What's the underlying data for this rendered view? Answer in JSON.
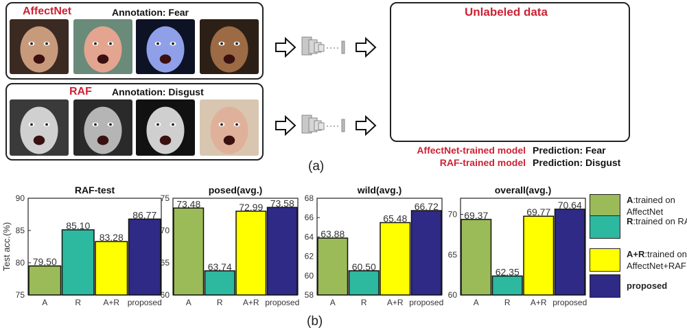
{
  "labeled": {
    "affectnet": {
      "name": "AffectNet",
      "annotation": "Annotation: Fear"
    },
    "raf": {
      "name": "RAF",
      "annotation": "Annotation: Disgust"
    }
  },
  "unlabeled": {
    "title": "Unlabeled data",
    "predictions": [
      {
        "model": "AffectNet-trained model",
        "prediction": "Prediction: Fear"
      },
      {
        "model": "RAF-trained model",
        "prediction": "Prediction: Disgust"
      }
    ]
  },
  "captions": {
    "a": "(a)",
    "b": "(b)"
  },
  "legend": [
    {
      "key": "A",
      "desc": ":trained on AffectNet",
      "color": "#9bbb59"
    },
    {
      "key": "R",
      "desc": ":trained on RAF",
      "color": "#2db8a0"
    },
    {
      "key": "A+R",
      "desc": ":trained on AffectNet+RAF",
      "color": "#ffff00"
    },
    {
      "key": "proposed",
      "desc": "",
      "color": "#2e2a85"
    }
  ],
  "chart_data": [
    {
      "type": "bar",
      "title": "RAF-test",
      "ylabel": "Test acc.(%)",
      "categories": [
        "A",
        "R",
        "A+R",
        "proposed"
      ],
      "values": [
        79.5,
        85.1,
        83.28,
        86.77
      ],
      "labels": [
        "79.50",
        "85.10",
        "83.28",
        "86.77"
      ],
      "ylim": [
        75,
        90
      ],
      "yticks": [
        75,
        80,
        85,
        90
      ]
    },
    {
      "type": "bar",
      "title": "posed(avg.)",
      "ylabel": "",
      "categories": [
        "A",
        "R",
        "A+R",
        "proposed"
      ],
      "values": [
        73.48,
        63.74,
        72.99,
        73.58
      ],
      "labels": [
        "73.48",
        "63.74",
        "72.99",
        "73.58"
      ],
      "ylim": [
        60,
        75
      ],
      "yticks": [
        60,
        65,
        70,
        75
      ]
    },
    {
      "type": "bar",
      "title": "wild(avg.)",
      "ylabel": "",
      "categories": [
        "A",
        "R",
        "A+R",
        "proposed"
      ],
      "values": [
        63.88,
        60.5,
        65.48,
        66.72
      ],
      "labels": [
        "63.88",
        "60.50",
        "65.48",
        "66.72"
      ],
      "ylim": [
        58,
        68
      ],
      "yticks": [
        58,
        60,
        62,
        64,
        66,
        68
      ]
    },
    {
      "type": "bar",
      "title": "overall(avg.)",
      "ylabel": "",
      "categories": [
        "A",
        "R",
        "A+R",
        "proposed"
      ],
      "values": [
        69.37,
        62.35,
        69.77,
        70.64
      ],
      "labels": [
        "69.37",
        "62.35",
        "69.77",
        "70.64"
      ],
      "ylim": [
        60,
        72
      ],
      "yticks": [
        60,
        65,
        70
      ]
    }
  ]
}
